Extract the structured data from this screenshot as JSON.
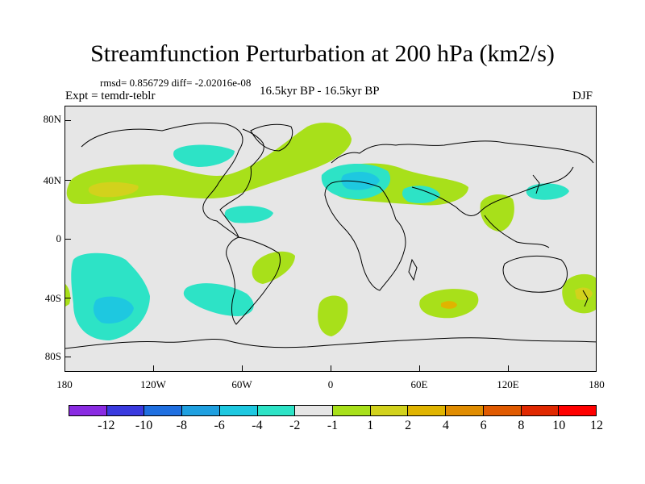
{
  "title": "Streamfunction Perturbation at 200 hPa (km2/s)",
  "rmsd_line": "rmsd= 0.856729 diff= -2.02016e-08",
  "expt_line": "Expt = temdr-teblr",
  "subtitle": "16.5kyr BP - 16.5kyr BP",
  "season": "DJF",
  "map": {
    "lat_labels": [
      "80N",
      "40N",
      "0",
      "40S",
      "80S"
    ],
    "lon_labels": [
      "180",
      "120W",
      "60W",
      "0",
      "60E",
      "120E",
      "180"
    ]
  },
  "colorbar": {
    "colors": [
      "#8a2be2",
      "#3a3adf",
      "#1f6fe0",
      "#1fa0e0",
      "#1ec8e0",
      "#2de3c6",
      "#e6e6e6",
      "#a8e01a",
      "#d2d21c",
      "#e0b400",
      "#e08c00",
      "#e05a00",
      "#e02800",
      "#ff0000"
    ],
    "labels": [
      "-12",
      "-10",
      "-8",
      "-6",
      "-4",
      "-2",
      "-1",
      "1",
      "2",
      "4",
      "6",
      "8",
      "10",
      "12"
    ]
  },
  "contour_colors": {
    "pos1": "#a8e01a",
    "pos2": "#d2d21c",
    "pos3": "#e0b400",
    "neg1": "#2de3c6",
    "neg2": "#1ec8e0"
  }
}
